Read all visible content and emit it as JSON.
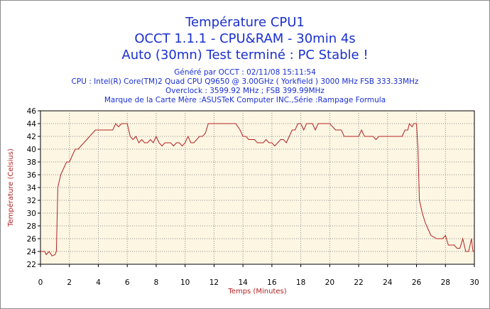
{
  "header": {
    "title_line1": "Température CPU1",
    "title_line2": "OCCT 1.1.1 - CPU&RAM - 30min 4s",
    "title_line3": "Auto (30mn) Test terminé : PC Stable !",
    "generated": "Généré par OCCT : 02/11/08 15:11:54",
    "cpu": "CPU : Intel(R) Core(TM)2 Quad CPU Q9650 @ 3.00GHz ( Yorkfield ) 3000 MHz FSB 333.33MHz",
    "overclock": "Overclock : 3599.92 MHz ; FSB 399.99MHz",
    "motherboard": "Marque de la Carte Mère :ASUSTeK Computer INC.,Série :Rampage Formula"
  },
  "colors": {
    "title": "#1a2fcf",
    "series_line": "#b22222",
    "plot_background": "#fdf6e3",
    "grid": "#8a8a8a"
  },
  "chart_data": {
    "type": "line",
    "title": "Température CPU1",
    "xlabel": "Temps (Minutes)",
    "ylabel": "Température (Celsius)",
    "xlim": [
      0,
      30
    ],
    "ylim": [
      22,
      46
    ],
    "x_ticks": [
      0,
      2,
      4,
      6,
      8,
      10,
      12,
      14,
      16,
      18,
      20,
      22,
      24,
      26,
      28,
      30
    ],
    "y_ticks": [
      22,
      24,
      26,
      28,
      30,
      32,
      34,
      36,
      38,
      40,
      42,
      44,
      46
    ],
    "grid": "dotted",
    "series": [
      {
        "points": [
          [
            0.0,
            24
          ],
          [
            0.3,
            24
          ],
          [
            0.4,
            23.5
          ],
          [
            0.6,
            24
          ],
          [
            0.8,
            23.3
          ],
          [
            1.0,
            23.5
          ],
          [
            1.1,
            24
          ],
          [
            1.2,
            34
          ],
          [
            1.4,
            36
          ],
          [
            1.6,
            37
          ],
          [
            1.8,
            38
          ],
          [
            2.0,
            38
          ],
          [
            2.2,
            39
          ],
          [
            2.4,
            40
          ],
          [
            2.6,
            40
          ],
          [
            2.8,
            40.5
          ],
          [
            3.0,
            41
          ],
          [
            3.2,
            41.5
          ],
          [
            3.4,
            42
          ],
          [
            3.6,
            42.5
          ],
          [
            3.8,
            43
          ],
          [
            4.0,
            43
          ],
          [
            4.5,
            43
          ],
          [
            5.0,
            43
          ],
          [
            5.2,
            44
          ],
          [
            5.4,
            43.5
          ],
          [
            5.6,
            44
          ],
          [
            6.0,
            44
          ],
          [
            6.2,
            42
          ],
          [
            6.4,
            41.5
          ],
          [
            6.6,
            42
          ],
          [
            6.8,
            41
          ],
          [
            7.0,
            41.5
          ],
          [
            7.2,
            41
          ],
          [
            7.4,
            41
          ],
          [
            7.6,
            41.5
          ],
          [
            7.8,
            41
          ],
          [
            8.0,
            42
          ],
          [
            8.2,
            41
          ],
          [
            8.4,
            40.5
          ],
          [
            8.6,
            41
          ],
          [
            8.8,
            41
          ],
          [
            9.0,
            41
          ],
          [
            9.2,
            40.5
          ],
          [
            9.4,
            41
          ],
          [
            9.6,
            41
          ],
          [
            9.8,
            40.5
          ],
          [
            10.0,
            41
          ],
          [
            10.2,
            42
          ],
          [
            10.4,
            41
          ],
          [
            10.6,
            41
          ],
          [
            10.8,
            41.5
          ],
          [
            11.0,
            42
          ],
          [
            11.2,
            42
          ],
          [
            11.4,
            42.5
          ],
          [
            11.6,
            44
          ],
          [
            12.0,
            44
          ],
          [
            12.5,
            44
          ],
          [
            13.0,
            44
          ],
          [
            13.5,
            44
          ],
          [
            13.8,
            43
          ],
          [
            14.0,
            42
          ],
          [
            14.2,
            42
          ],
          [
            14.4,
            41.5
          ],
          [
            14.8,
            41.5
          ],
          [
            15.0,
            41
          ],
          [
            15.4,
            41
          ],
          [
            15.6,
            41.5
          ],
          [
            15.8,
            41
          ],
          [
            16.0,
            41
          ],
          [
            16.2,
            40.5
          ],
          [
            16.4,
            41
          ],
          [
            16.6,
            41.5
          ],
          [
            16.8,
            41.5
          ],
          [
            17.0,
            41
          ],
          [
            17.2,
            42
          ],
          [
            17.4,
            43
          ],
          [
            17.6,
            43
          ],
          [
            17.8,
            44
          ],
          [
            18.0,
            44
          ],
          [
            18.2,
            43
          ],
          [
            18.4,
            44
          ],
          [
            18.8,
            44
          ],
          [
            19.0,
            43
          ],
          [
            19.2,
            44
          ],
          [
            19.6,
            44
          ],
          [
            20.0,
            44
          ],
          [
            20.4,
            43
          ],
          [
            20.8,
            43
          ],
          [
            21.0,
            42
          ],
          [
            21.4,
            42
          ],
          [
            21.8,
            42
          ],
          [
            22.0,
            42
          ],
          [
            22.2,
            43
          ],
          [
            22.4,
            42
          ],
          [
            22.6,
            42
          ],
          [
            22.8,
            42
          ],
          [
            23.0,
            42
          ],
          [
            23.2,
            41.5
          ],
          [
            23.4,
            42
          ],
          [
            23.8,
            42
          ],
          [
            24.2,
            42
          ],
          [
            24.6,
            42
          ],
          [
            25.0,
            42
          ],
          [
            25.2,
            43
          ],
          [
            25.4,
            43
          ],
          [
            25.5,
            44
          ],
          [
            25.7,
            43.5
          ],
          [
            25.8,
            44
          ],
          [
            26.0,
            44
          ],
          [
            26.1,
            40
          ],
          [
            26.2,
            32
          ],
          [
            26.4,
            30
          ],
          [
            26.6,
            28.5
          ],
          [
            26.8,
            27.5
          ],
          [
            27.0,
            26.5
          ],
          [
            27.4,
            26
          ],
          [
            27.8,
            26
          ],
          [
            28.0,
            26.5
          ],
          [
            28.2,
            25
          ],
          [
            28.6,
            25
          ],
          [
            28.8,
            24.5
          ],
          [
            29.0,
            24.5
          ],
          [
            29.2,
            26
          ],
          [
            29.4,
            24
          ],
          [
            29.6,
            24
          ],
          [
            29.8,
            26
          ],
          [
            29.9,
            24
          ],
          [
            30.0,
            24
          ]
        ]
      }
    ]
  }
}
